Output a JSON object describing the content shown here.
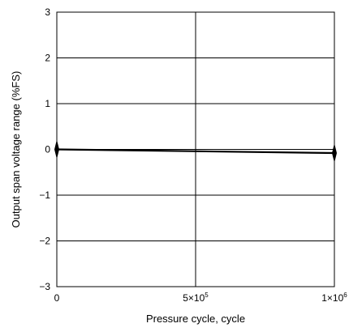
{
  "chart_data": {
    "type": "line",
    "title": "",
    "xlabel": "Pressure cycle, cycle",
    "ylabel": "Output span voltage range (%FS)",
    "xlim": [
      0,
      1000000
    ],
    "ylim": [
      -3,
      3
    ],
    "x_ticks": [
      0,
      500000,
      1000000
    ],
    "x_tick_labels": [
      {
        "base": "0",
        "exp": ""
      },
      {
        "base": "5×10",
        "exp": "5"
      },
      {
        "base": "1×10",
        "exp": "6"
      }
    ],
    "y_ticks": [
      3,
      2,
      1,
      0,
      -1,
      -2,
      -3
    ],
    "y_tick_labels": [
      "3",
      "2",
      "1",
      "0",
      "−1",
      "−2",
      "−3"
    ],
    "grid": true,
    "series": [
      {
        "x": [
          0,
          1000000
        ],
        "y": [
          0,
          -0.08
        ],
        "color": "#000000"
      }
    ]
  }
}
